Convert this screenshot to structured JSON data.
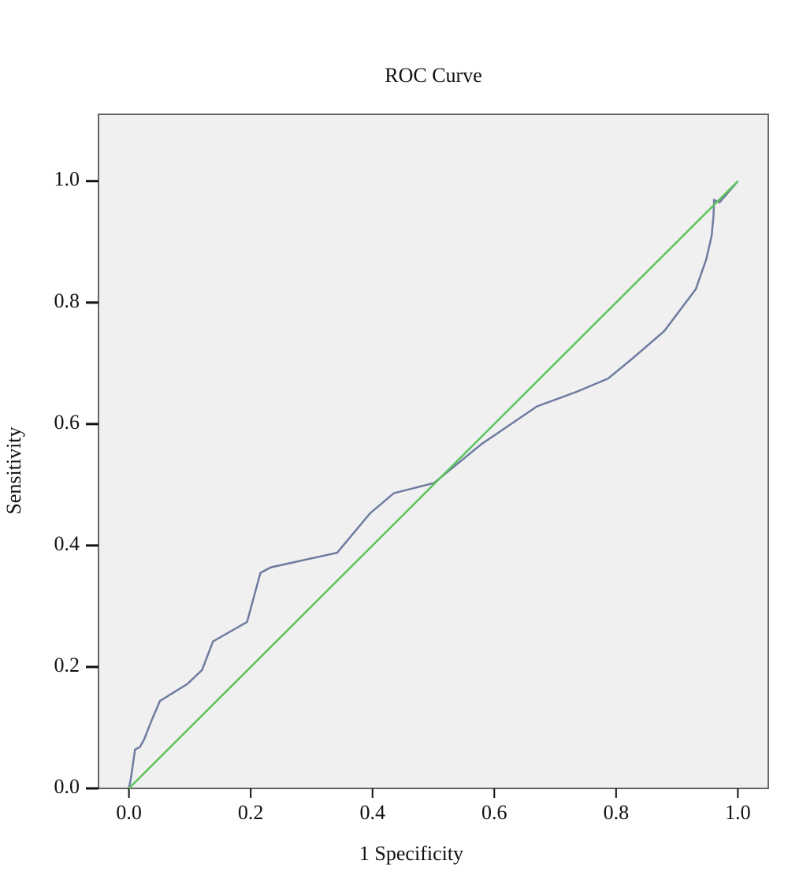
{
  "chart_data": {
    "type": "line",
    "title": "ROC Curve",
    "x_label": "1 Specificity",
    "y_label": "Sensitivity",
    "xlim": [
      -0.05,
      1.05
    ],
    "ylim": [
      0,
      1.11
    ],
    "xticks": [
      {
        "value": 0,
        "label": "0.0"
      },
      0.2,
      0.4,
      0.6,
      0.8,
      {
        "value": 1,
        "label": "1.0"
      }
    ],
    "yticks": [
      {
        "value": 0,
        "label": "0.0"
      },
      0.2,
      0.4,
      0.6,
      0.8,
      {
        "value": 1,
        "label": "1.0"
      }
    ],
    "series": [
      {
        "color": "#6e7ca0",
        "x": [
          0,
          0.003,
          0.01,
          0.018,
          0.025,
          0.038,
          0.051,
          0.096,
          0.12,
          0.138,
          0.194,
          0.216,
          0.233,
          0.342,
          0.396,
          0.435,
          0.501,
          0.579,
          0.67,
          0.735,
          0.787,
          0.827,
          0.879,
          0.931,
          0.948,
          0.957,
          0.96,
          0.961,
          0.97,
          1
        ],
        "values": [
          0,
          0.016,
          0.064,
          0.068,
          0.081,
          0.114,
          0.144,
          0.172,
          0.195,
          0.242,
          0.274,
          0.355,
          0.364,
          0.388,
          0.453,
          0.486,
          0.503,
          0.567,
          0.629,
          0.653,
          0.675,
          0.708,
          0.753,
          0.822,
          0.871,
          0.91,
          0.943,
          0.969,
          0.965,
          1
        ]
      },
      {
        "color": "#5cc45c",
        "x": [
          0,
          1
        ],
        "values": [
          0,
          1
        ]
      }
    ]
  }
}
